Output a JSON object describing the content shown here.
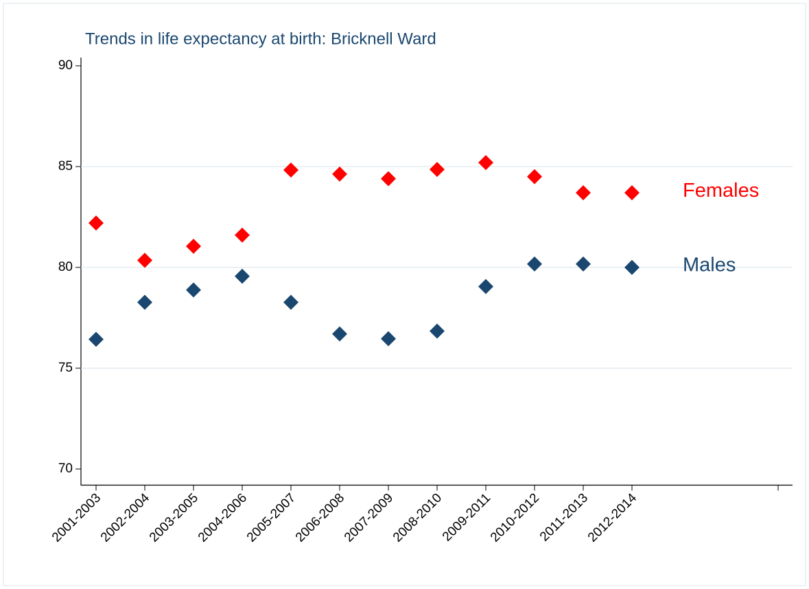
{
  "chart_data": {
    "type": "scatter",
    "title": "Trends in life expectancy at birth: Bricknell Ward",
    "categories": [
      "2001-2003",
      "2002-2004",
      "2003-2005",
      "2004-2006",
      "2005-2007",
      "2006-2008",
      "2007-2009",
      "2008-2010",
      "2009-2011",
      "2010-2012",
      "2011-2013",
      "2012-2014",
      null,
      null,
      null
    ],
    "series": [
      {
        "name": "Females",
        "color": "#ff0000",
        "values": [
          82.2,
          80.35,
          81.05,
          81.6,
          84.83,
          84.63,
          84.4,
          84.86,
          85.2,
          84.5,
          83.7,
          83.7,
          null,
          null,
          null
        ]
      },
      {
        "name": "Males",
        "color": "#1a476f",
        "values": [
          76.43,
          78.27,
          78.88,
          79.56,
          78.27,
          76.7,
          76.46,
          76.84,
          79.05,
          80.17,
          80.17,
          80.0,
          null,
          null,
          null
        ]
      }
    ],
    "ylim": [
      69.2,
      90.4
    ],
    "yticks": [
      70,
      75,
      80,
      85,
      90
    ],
    "grid": true
  }
}
